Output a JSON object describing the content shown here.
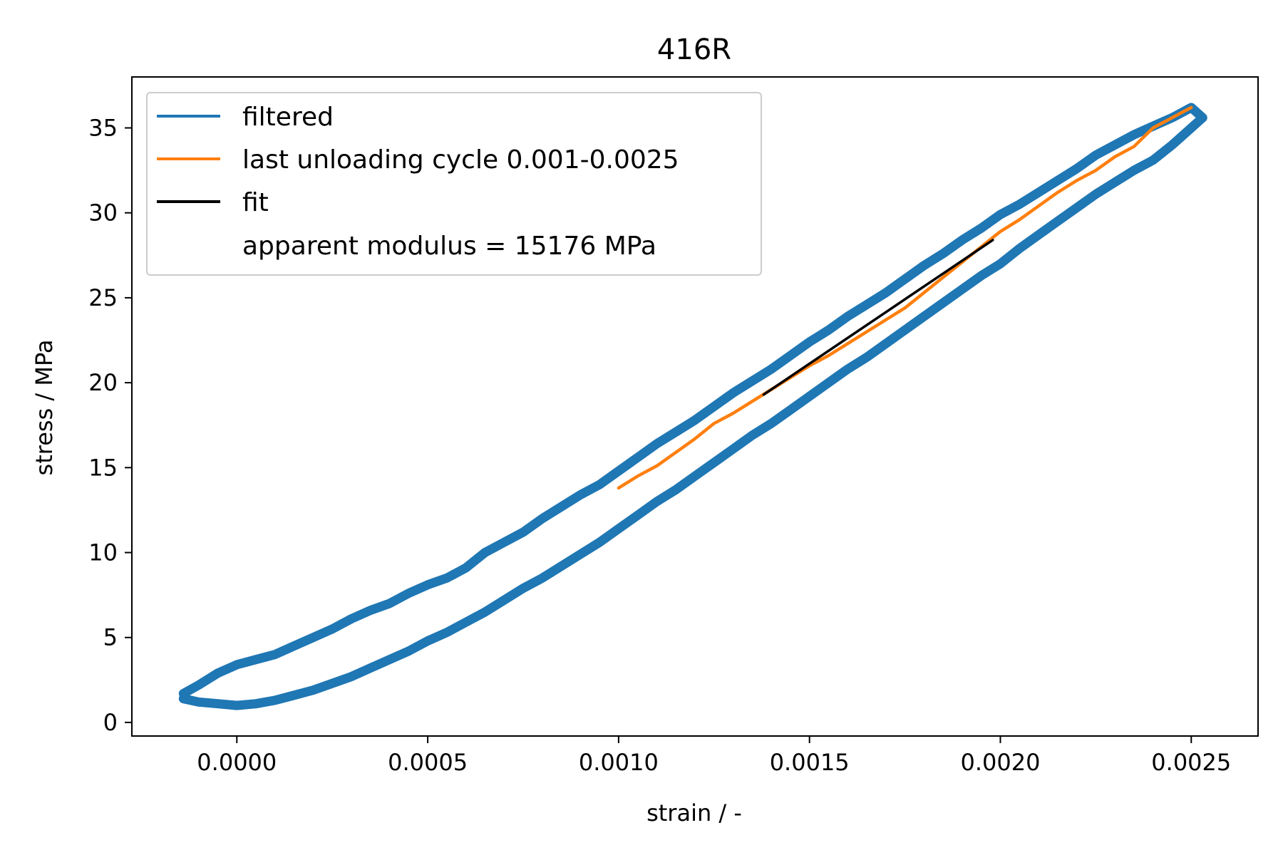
{
  "chart_data": {
    "type": "line",
    "title": "416R",
    "xlabel": "strain / -",
    "ylabel": "stress / MPa",
    "xlim": [
      -0.000275,
      0.002675
    ],
    "ylim": [
      -0.8,
      38
    ],
    "x_ticks": [
      0.0,
      0.0005,
      0.001,
      0.0015,
      0.002,
      0.0025
    ],
    "x_tick_labels": [
      "0.0000",
      "0.0005",
      "0.0010",
      "0.0015",
      "0.0020",
      "0.0025"
    ],
    "y_ticks": [
      0,
      5,
      10,
      15,
      20,
      25,
      30,
      35
    ],
    "y_tick_labels": [
      "0",
      "5",
      "10",
      "15",
      "20",
      "25",
      "30",
      "35"
    ],
    "grid": false,
    "legend_position": "upper-left",
    "series": [
      {
        "name": "filtered",
        "color": "#1f77b4",
        "x": [
          -0.00014,
          -0.0001,
          -5e-05,
          0.0,
          5e-05,
          0.0001,
          0.00015,
          0.0002,
          0.00025,
          0.0003,
          0.00035,
          0.0004,
          0.00045,
          0.0005,
          0.00055,
          0.0006,
          0.00065,
          0.0007,
          0.00075,
          0.0008,
          0.00085,
          0.0009,
          0.00095,
          0.001,
          0.00105,
          0.0011,
          0.00115,
          0.0012,
          0.00125,
          0.0013,
          0.00135,
          0.0014,
          0.00145,
          0.0015,
          0.00155,
          0.0016,
          0.00165,
          0.0017,
          0.00175,
          0.0018,
          0.00185,
          0.0019,
          0.00195,
          0.002,
          0.00205,
          0.0021,
          0.00215,
          0.0022,
          0.00225,
          0.0023,
          0.00235,
          0.0024,
          0.00245,
          0.0025,
          0.00253,
          0.0025,
          0.00245,
          0.0024,
          0.00235,
          0.0023,
          0.00225,
          0.0022,
          0.00215,
          0.0021,
          0.00205,
          0.002,
          0.00195,
          0.0019,
          0.00185,
          0.0018,
          0.00175,
          0.0017,
          0.00165,
          0.0016,
          0.00155,
          0.0015,
          0.00145,
          0.0014,
          0.00135,
          0.0013,
          0.00125,
          0.0012,
          0.00115,
          0.0011,
          0.00105,
          0.001,
          0.00095,
          0.0009,
          0.00085,
          0.0008,
          0.00075,
          0.0007,
          0.00065,
          0.0006,
          0.00055,
          0.0005,
          0.00045,
          0.0004,
          0.00035,
          0.0003,
          0.00025,
          0.0002,
          0.00015,
          0.0001,
          5e-05,
          0.0,
          -5e-05,
          -0.0001,
          -0.00014
        ],
        "y": [
          1.7,
          2.2,
          2.9,
          3.4,
          3.7,
          4.0,
          4.5,
          5.0,
          5.5,
          6.1,
          6.6,
          7.0,
          7.6,
          8.1,
          8.5,
          9.1,
          10.0,
          10.6,
          11.2,
          12.0,
          12.7,
          13.4,
          14.0,
          14.8,
          15.6,
          16.4,
          17.1,
          17.8,
          18.6,
          19.4,
          20.1,
          20.8,
          21.6,
          22.4,
          23.1,
          23.9,
          24.6,
          25.3,
          26.1,
          26.9,
          27.6,
          28.4,
          29.1,
          29.9,
          30.5,
          31.2,
          31.9,
          32.6,
          33.4,
          34.0,
          34.6,
          35.1,
          35.6,
          36.2,
          35.6,
          35.0,
          34.0,
          33.1,
          32.5,
          31.8,
          31.1,
          30.3,
          29.5,
          28.7,
          27.9,
          27.0,
          26.3,
          25.5,
          24.7,
          23.9,
          23.1,
          22.3,
          21.5,
          20.8,
          20.0,
          19.2,
          18.4,
          17.6,
          16.9,
          16.1,
          15.3,
          14.5,
          13.7,
          13.0,
          12.2,
          11.4,
          10.6,
          9.9,
          9.2,
          8.5,
          7.9,
          7.2,
          6.5,
          5.9,
          5.3,
          4.8,
          4.2,
          3.7,
          3.2,
          2.7,
          2.3,
          1.9,
          1.6,
          1.3,
          1.1,
          1.0,
          1.1,
          1.2,
          1.4
        ]
      },
      {
        "name": "last unloading cycle 0.001-0.0025",
        "color": "#ff7f0e",
        "x": [
          0.001,
          0.00105,
          0.0011,
          0.00115,
          0.0012,
          0.00125,
          0.0013,
          0.00135,
          0.0014,
          0.00145,
          0.0015,
          0.00155,
          0.0016,
          0.00165,
          0.0017,
          0.00175,
          0.0018,
          0.00185,
          0.0019,
          0.00195,
          0.002,
          0.00205,
          0.0021,
          0.00215,
          0.0022,
          0.00225,
          0.0023,
          0.00235,
          0.0024,
          0.00245,
          0.0025
        ],
        "y": [
          13.8,
          14.5,
          15.1,
          15.9,
          16.7,
          17.6,
          18.2,
          18.9,
          19.6,
          20.3,
          21.0,
          21.6,
          22.3,
          23.0,
          23.7,
          24.4,
          25.3,
          26.2,
          27.1,
          28.0,
          28.9,
          29.6,
          30.4,
          31.2,
          31.9,
          32.5,
          33.3,
          33.9,
          35.0,
          35.6,
          36.2
        ]
      },
      {
        "name": "fit",
        "color": "#000000",
        "x": [
          0.00138,
          0.00198
        ],
        "y": [
          19.3,
          28.4
        ]
      }
    ],
    "annotations": [
      "apparent modulus = 15176 MPa"
    ]
  }
}
